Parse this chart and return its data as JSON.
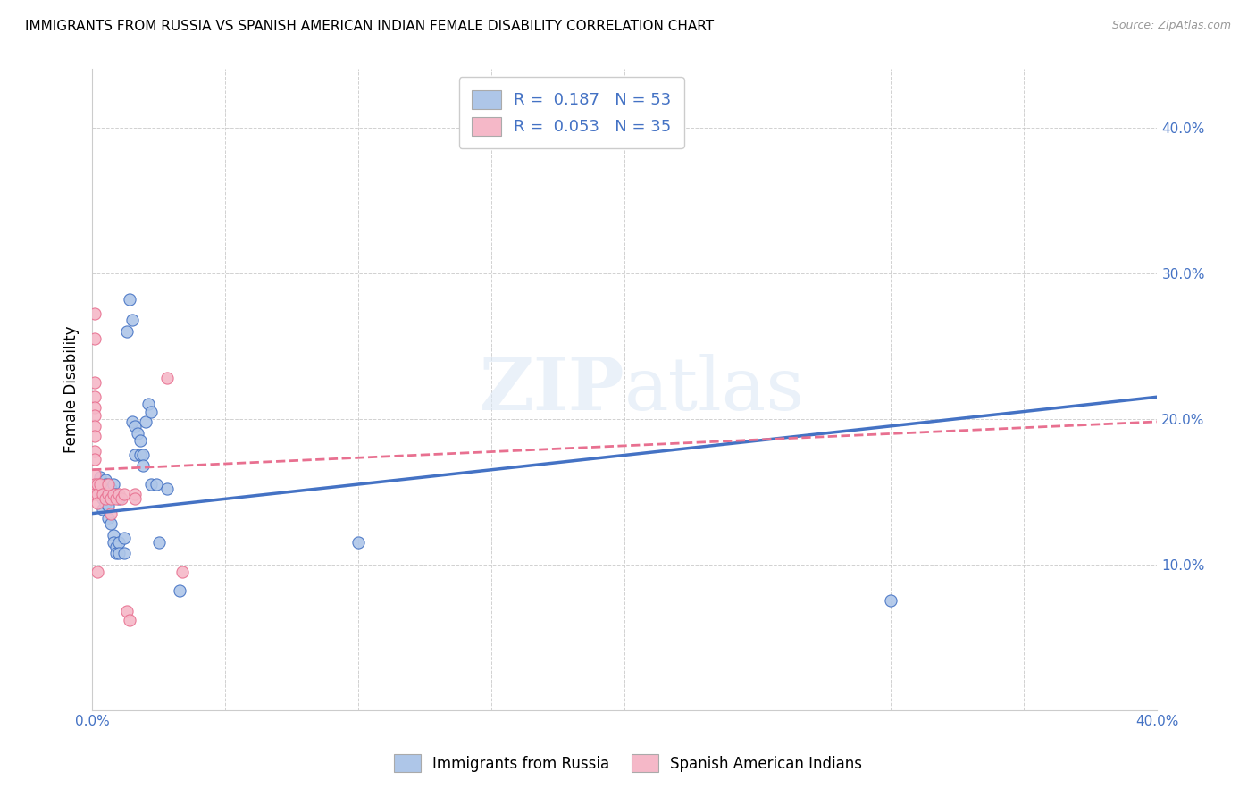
{
  "title": "IMMIGRANTS FROM RUSSIA VS SPANISH AMERICAN INDIAN FEMALE DISABILITY CORRELATION CHART",
  "source": "Source: ZipAtlas.com",
  "ylabel": "Female Disability",
  "watermark": "ZIPatlas",
  "blue_R": 0.187,
  "blue_N": 53,
  "pink_R": 0.053,
  "pink_N": 35,
  "xlim": [
    0.0,
    0.4
  ],
  "ylim": [
    0.0,
    0.44
  ],
  "xticks": [
    0.0,
    0.05,
    0.1,
    0.15,
    0.2,
    0.25,
    0.3,
    0.35,
    0.4
  ],
  "yticks": [
    0.0,
    0.1,
    0.2,
    0.3,
    0.4
  ],
  "legend1_label": "Immigrants from Russia",
  "legend2_label": "Spanish American Indians",
  "blue_color": "#aec6e8",
  "pink_color": "#f5b8c8",
  "blue_line_color": "#4472c4",
  "pink_line_color": "#e87090",
  "blue_scatter": [
    [
      0.001,
      0.155
    ],
    [
      0.002,
      0.152
    ],
    [
      0.002,
      0.148
    ],
    [
      0.003,
      0.16
    ],
    [
      0.003,
      0.155
    ],
    [
      0.003,
      0.148
    ],
    [
      0.004,
      0.152
    ],
    [
      0.004,
      0.145
    ],
    [
      0.004,
      0.138
    ],
    [
      0.005,
      0.158
    ],
    [
      0.005,
      0.155
    ],
    [
      0.005,
      0.148
    ],
    [
      0.005,
      0.142
    ],
    [
      0.006,
      0.155
    ],
    [
      0.006,
      0.148
    ],
    [
      0.006,
      0.14
    ],
    [
      0.006,
      0.132
    ],
    [
      0.007,
      0.152
    ],
    [
      0.007,
      0.148
    ],
    [
      0.007,
      0.128
    ],
    [
      0.008,
      0.155
    ],
    [
      0.008,
      0.148
    ],
    [
      0.008,
      0.12
    ],
    [
      0.008,
      0.115
    ],
    [
      0.009,
      0.148
    ],
    [
      0.009,
      0.112
    ],
    [
      0.009,
      0.108
    ],
    [
      0.01,
      0.145
    ],
    [
      0.01,
      0.115
    ],
    [
      0.01,
      0.108
    ],
    [
      0.012,
      0.118
    ],
    [
      0.012,
      0.108
    ],
    [
      0.013,
      0.26
    ],
    [
      0.014,
      0.282
    ],
    [
      0.015,
      0.268
    ],
    [
      0.015,
      0.198
    ],
    [
      0.016,
      0.195
    ],
    [
      0.016,
      0.175
    ],
    [
      0.017,
      0.19
    ],
    [
      0.018,
      0.185
    ],
    [
      0.018,
      0.175
    ],
    [
      0.019,
      0.175
    ],
    [
      0.019,
      0.168
    ],
    [
      0.02,
      0.198
    ],
    [
      0.021,
      0.21
    ],
    [
      0.022,
      0.205
    ],
    [
      0.022,
      0.155
    ],
    [
      0.024,
      0.155
    ],
    [
      0.025,
      0.115
    ],
    [
      0.028,
      0.152
    ],
    [
      0.033,
      0.082
    ],
    [
      0.1,
      0.115
    ],
    [
      0.3,
      0.075
    ]
  ],
  "pink_scatter": [
    [
      0.001,
      0.272
    ],
    [
      0.001,
      0.255
    ],
    [
      0.001,
      0.225
    ],
    [
      0.001,
      0.215
    ],
    [
      0.001,
      0.208
    ],
    [
      0.001,
      0.202
    ],
    [
      0.001,
      0.195
    ],
    [
      0.001,
      0.188
    ],
    [
      0.001,
      0.178
    ],
    [
      0.001,
      0.172
    ],
    [
      0.001,
      0.162
    ],
    [
      0.001,
      0.155
    ],
    [
      0.001,
      0.148
    ],
    [
      0.002,
      0.155
    ],
    [
      0.002,
      0.148
    ],
    [
      0.002,
      0.142
    ],
    [
      0.002,
      0.095
    ],
    [
      0.003,
      0.155
    ],
    [
      0.004,
      0.148
    ],
    [
      0.005,
      0.145
    ],
    [
      0.006,
      0.148
    ],
    [
      0.007,
      0.145
    ],
    [
      0.008,
      0.148
    ],
    [
      0.009,
      0.145
    ],
    [
      0.01,
      0.148
    ],
    [
      0.011,
      0.145
    ],
    [
      0.012,
      0.148
    ],
    [
      0.013,
      0.068
    ],
    [
      0.014,
      0.062
    ],
    [
      0.016,
      0.148
    ],
    [
      0.016,
      0.145
    ],
    [
      0.028,
      0.228
    ],
    [
      0.034,
      0.095
    ],
    [
      0.006,
      0.155
    ],
    [
      0.007,
      0.135
    ]
  ]
}
